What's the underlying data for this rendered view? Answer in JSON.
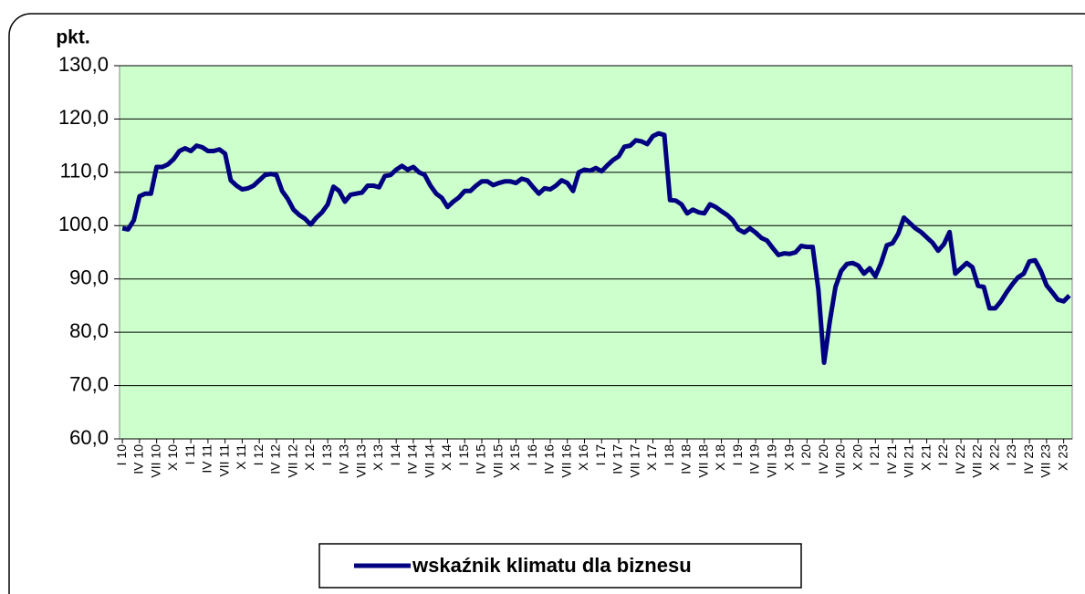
{
  "chart_data": {
    "type": "line",
    "y_label": "pkt.",
    "categories": [
      "I 10",
      null,
      null,
      "IV 10",
      null,
      null,
      "VII 10",
      null,
      null,
      "X 10",
      null,
      null,
      "I 11",
      null,
      null,
      "IV 11",
      null,
      null,
      "VII 11",
      null,
      null,
      "X 11",
      null,
      null,
      "I 12",
      null,
      null,
      "IV 12",
      null,
      null,
      "VII 12",
      null,
      null,
      "X 12",
      null,
      null,
      "I 13",
      null,
      null,
      "IV 13",
      null,
      null,
      "VII 13",
      null,
      null,
      "X 13",
      null,
      null,
      "I 14",
      null,
      null,
      "IV 14",
      null,
      null,
      "VII 14",
      null,
      null,
      "X 14",
      null,
      null,
      "I 15",
      null,
      null,
      "IV 15",
      null,
      null,
      "VII 15",
      null,
      null,
      "X 15",
      null,
      null,
      "I 16",
      null,
      null,
      "IV 16",
      null,
      null,
      "VII 16",
      null,
      null,
      "X 16",
      null,
      null,
      "I 17",
      null,
      null,
      "IV 17",
      null,
      null,
      "VII 17",
      null,
      null,
      "X 17",
      null,
      null,
      "I 18",
      null,
      null,
      "IV 18",
      null,
      null,
      "VII 18",
      null,
      null,
      "X 18",
      null,
      null,
      "I 19",
      null,
      null,
      "IV 19",
      null,
      null,
      "VII 19",
      null,
      null,
      "X 19",
      null,
      null,
      "I 20",
      null,
      null,
      "IV 20",
      null,
      null,
      "VII 20",
      null,
      null,
      "X 20",
      null,
      null,
      "I 21",
      null,
      null,
      "IV 21",
      null,
      null,
      "VII 21",
      null,
      null,
      "X 21",
      null,
      null,
      "I 22",
      null,
      null,
      "IV 22",
      null,
      null,
      "VII 22",
      null,
      null,
      "X 22",
      null,
      null,
      "I 23",
      null,
      null,
      "IV 23",
      null,
      null,
      "VII 23",
      null,
      null,
      "X 23",
      null
    ],
    "series": [
      {
        "name": "wskaźnik klimatu dla biznesu",
        "color": "#000080",
        "values": [
          99.5,
          99.3,
          101,
          105.5,
          106,
          106,
          111,
          111,
          111.5,
          112.5,
          114,
          114.5,
          114,
          115,
          114.7,
          114,
          114,
          114.3,
          113.5,
          108.5,
          107.5,
          106.8,
          107,
          107.5,
          108.5,
          109.5,
          109.7,
          109.5,
          106.5,
          105,
          103,
          102,
          101.3,
          100.2,
          101.5,
          102.5,
          104,
          107.3,
          106.5,
          104.5,
          105.8,
          106,
          106.2,
          107.5,
          107.5,
          107.2,
          109.3,
          109.5,
          110.5,
          111.2,
          110.5,
          111,
          110,
          109.5,
          107.5,
          106,
          105.2,
          103.5,
          104.5,
          105.3,
          106.5,
          106.5,
          107.5,
          108.3,
          108.3,
          107.6,
          108,
          108.3,
          108.3,
          108,
          108.8,
          108.5,
          107.2,
          106,
          107,
          106.8,
          107.5,
          108.5,
          108,
          106.5,
          110,
          110.5,
          110.3,
          110.8,
          110.2,
          111.3,
          112.3,
          113,
          114.8,
          115,
          116,
          115.8,
          115.3,
          116.8,
          117.3,
          117,
          104.8,
          104.7,
          104,
          102.3,
          103,
          102.5,
          102.3,
          104,
          103.5,
          102.7,
          102,
          101,
          99.3,
          98.7,
          99.5,
          98.7,
          97.7,
          97.2,
          95.8,
          94.5,
          94.8,
          94.7,
          95,
          96.2,
          96,
          96,
          88,
          74.3,
          82,
          88.5,
          91.5,
          92.8,
          93,
          92.5,
          91,
          92,
          90.5,
          93,
          96.3,
          96.7,
          98.5,
          101.5,
          100.5,
          99.5,
          98.8,
          97.8,
          96.8,
          95.3,
          96.5,
          98.8,
          91,
          92,
          93,
          92.2,
          88.7,
          88.5,
          84.5,
          84.5,
          85.8,
          87.5,
          89,
          90.3,
          91,
          93.3,
          93.5,
          91.5,
          88.8,
          87.5,
          86.1,
          85.8,
          86.9
        ]
      }
    ],
    "ylim": [
      60,
      130
    ],
    "yticks": [
      {
        "value": 60,
        "label": "60,0"
      },
      {
        "value": 70,
        "label": "70,0"
      },
      {
        "value": 80,
        "label": "80,0"
      },
      {
        "value": 90,
        "label": "90,0"
      },
      {
        "value": 100,
        "label": "100,0"
      },
      {
        "value": 110,
        "label": "110,0"
      },
      {
        "value": 120,
        "label": "120,0"
      },
      {
        "value": 130,
        "label": "130,0"
      }
    ],
    "grid": true,
    "legend": "bottom"
  }
}
